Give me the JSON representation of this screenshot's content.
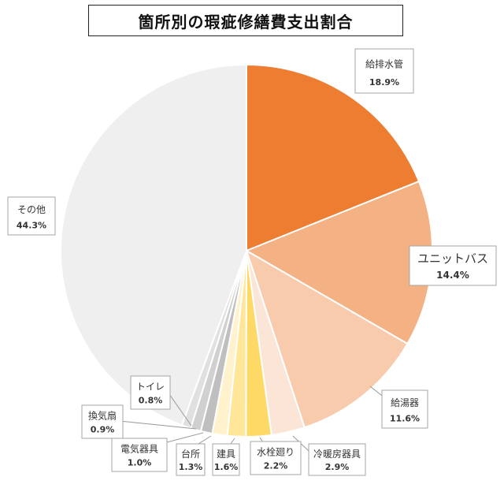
{
  "title": "箇所別の瑕疵修繕費支出割合",
  "chart_data": {
    "type": "pie",
    "start": "12 o'clock",
    "direction": "clockwise",
    "slices": [
      {
        "label": "給排水管",
        "percent_text": "18.9%",
        "value": 18.9,
        "color": "#ED7D31"
      },
      {
        "label": "ユニットバス",
        "percent_text": "14.4%",
        "value": 14.4,
        "color": "#F4B183"
      },
      {
        "label": "給湯器",
        "percent_text": "11.6%",
        "value": 11.6,
        "color": "#F8CBAD"
      },
      {
        "label": "冷暖房器具",
        "percent_text": "2.9%",
        "value": 2.9,
        "color": "#FBE5D6"
      },
      {
        "label": "水栓廻り",
        "percent_text": "2.2%",
        "value": 2.2,
        "color": "#FFD966"
      },
      {
        "label": "建具",
        "percent_text": "1.6%",
        "value": 1.6,
        "color": "#FFE699"
      },
      {
        "label": "台所",
        "percent_text": "1.3%",
        "value": 1.3,
        "color": "#FFF2CC"
      },
      {
        "label": "電気器具",
        "percent_text": "1.0%",
        "value": 1.0,
        "color": "#BFBFBF"
      },
      {
        "label": "換気扇",
        "percent_text": "0.9%",
        "value": 0.9,
        "color": "#D0D0D0"
      },
      {
        "label": "トイレ",
        "percent_text": "0.8%",
        "value": 0.8,
        "color": "#E0E0E0"
      },
      {
        "label": "その他",
        "percent_text": "44.3%",
        "value": 44.3,
        "color": "#EFEFEF"
      }
    ]
  }
}
